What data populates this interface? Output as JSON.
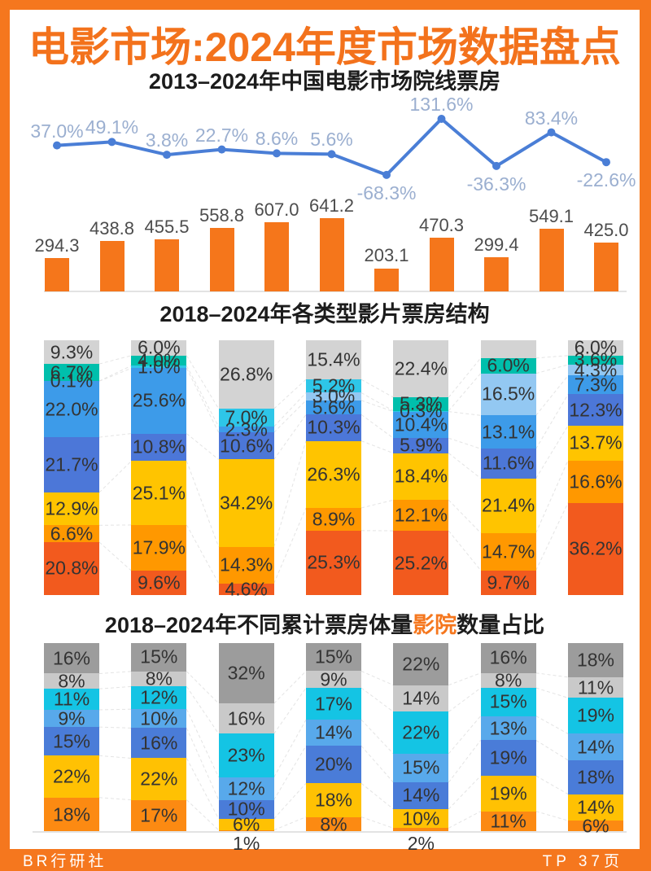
{
  "page": {
    "title": "电影市场:2024年度市场数据盘点",
    "footer_left": "BR行研社",
    "footer_right": "TP 37页",
    "brand_orange": "#F5771E"
  },
  "chart_data": [
    {
      "type": "bar",
      "subtype": "bar-line-combo",
      "title": "2013–2024年中国电影市场院线票房",
      "bar_series": {
        "name": "院线票房(亿元)",
        "values": [
          294.3,
          438.8,
          455.5,
          558.8,
          607.0,
          641.2,
          203.1,
          470.3,
          299.4,
          549.1,
          425.0
        ],
        "labels": [
          "294.3",
          "438.8",
          "455.5",
          "558.8",
          "607.0",
          "641.2",
          "203.1",
          "470.3",
          "299.4",
          "549.1",
          "425.0"
        ],
        "color": "#F5761B",
        "label_color": "#4D4D4D"
      },
      "line_series": {
        "name": "同比增速(%)",
        "values": [
          37.0,
          49.1,
          3.8,
          22.7,
          8.6,
          5.6,
          -68.3,
          131.6,
          -36.3,
          83.4,
          -22.6
        ],
        "labels": [
          "37.0%",
          "49.1%",
          "3.8%",
          "22.7%",
          "8.6%",
          "5.6%",
          "-68.3%",
          "131.6%",
          "-36.3%",
          "83.4%",
          "-22.6%"
        ],
        "color": "#4A7ED6",
        "label_color": "#9BAFD0"
      },
      "ylim_bar": [
        0,
        641.2
      ],
      "grid": false,
      "legend": "none"
    },
    {
      "type": "bar",
      "subtype": "stacked-100",
      "title": "2018–2024年各类型影片票房结构",
      "palette": {
        "gray": "#D3D3D3",
        "teal": "#00BFAC",
        "cyan": "#2EC6E8",
        "paleblue": "#93C8F2",
        "lightblue": "#3D9BE9",
        "medblue": "#4C77D8",
        "yellow": "#FFC400",
        "orange": "#FF9800",
        "deeporange": "#F25A1E"
      },
      "bars": [
        {
          "segments": [
            {
              "label": "9.3%",
              "value": 9.3,
              "color": "gray"
            },
            {
              "label": "6.7%",
              "value": 6.7,
              "color": "teal"
            },
            {
              "label": "0.1%",
              "value": 0.1,
              "color": "cyan"
            },
            {
              "label": "22.0%",
              "value": 22.0,
              "color": "lightblue"
            },
            {
              "label": "21.7%",
              "value": 21.7,
              "color": "medblue"
            },
            {
              "label": "12.9%",
              "value": 12.9,
              "color": "yellow"
            },
            {
              "label": "6.6%",
              "value": 6.6,
              "color": "orange"
            },
            {
              "label": "20.8%",
              "value": 20.8,
              "color": "deeporange"
            }
          ]
        },
        {
          "segments": [
            {
              "label": "6.0%",
              "value": 6.0,
              "color": "gray"
            },
            {
              "label": "4.0%",
              "value": 4.0,
              "color": "teal"
            },
            {
              "label": "1.0%",
              "value": 1.0,
              "color": "cyan"
            },
            {
              "label": "25.6%",
              "value": 25.6,
              "color": "lightblue"
            },
            {
              "label": "10.8%",
              "value": 10.8,
              "color": "medblue"
            },
            {
              "label": "25.1%",
              "value": 25.1,
              "color": "yellow"
            },
            {
              "label": "17.9%",
              "value": 17.9,
              "color": "orange"
            },
            {
              "label": "9.6%",
              "value": 9.6,
              "color": "deeporange"
            }
          ]
        },
        {
          "segments": [
            {
              "label": "26.8%",
              "value": 26.8,
              "color": "gray"
            },
            {
              "label": "7.0%",
              "value": 7.0,
              "color": "cyan"
            },
            {
              "label": "2.3%",
              "value": 2.3,
              "color": "lightblue"
            },
            {
              "label": "10.6%",
              "value": 10.6,
              "color": "medblue"
            },
            {
              "label": "34.2%",
              "value": 34.2,
              "color": "yellow"
            },
            {
              "label": "14.3%",
              "value": 14.3,
              "color": "orange"
            },
            {
              "label": "4.6%",
              "value": 4.6,
              "color": "deeporange"
            }
          ]
        },
        {
          "segments": [
            {
              "label": "15.4%",
              "value": 15.4,
              "color": "gray"
            },
            {
              "label": "5.2%",
              "value": 5.2,
              "color": "cyan"
            },
            {
              "label": "3.0%",
              "value": 3.0,
              "color": "paleblue"
            },
            {
              "label": "5.6%",
              "value": 5.6,
              "color": "lightblue"
            },
            {
              "label": "10.3%",
              "value": 10.3,
              "color": "medblue"
            },
            {
              "label": "26.3%",
              "value": 26.3,
              "color": "yellow"
            },
            {
              "label": "8.9%",
              "value": 8.9,
              "color": "orange"
            },
            {
              "label": "25.3%",
              "value": 25.3,
              "color": "deeporange"
            }
          ]
        },
        {
          "segments": [
            {
              "label": "22.4%",
              "value": 22.4,
              "color": "gray"
            },
            {
              "label": "5.3%",
              "value": 5.3,
              "color": "teal"
            },
            {
              "label": "0.3%",
              "value": 0.3,
              "color": "cyan"
            },
            {
              "label": "10.4%",
              "value": 10.4,
              "color": "lightblue"
            },
            {
              "label": "5.9%",
              "value": 5.9,
              "color": "medblue"
            },
            {
              "label": "18.4%",
              "value": 18.4,
              "color": "yellow"
            },
            {
              "label": "12.1%",
              "value": 12.1,
              "color": "orange"
            },
            {
              "label": "25.2%",
              "value": 25.2,
              "color": "deeporange"
            }
          ]
        },
        {
          "segments": [
            {
              "label": "",
              "value": 7.0,
              "color": "gray"
            },
            {
              "label": "6.0%",
              "value": 6.0,
              "color": "teal"
            },
            {
              "label": "16.5%",
              "value": 16.5,
              "color": "paleblue"
            },
            {
              "label": "13.1%",
              "value": 13.1,
              "color": "lightblue"
            },
            {
              "label": "11.6%",
              "value": 11.6,
              "color": "medblue"
            },
            {
              "label": "21.4%",
              "value": 21.4,
              "color": "yellow"
            },
            {
              "label": "14.7%",
              "value": 14.7,
              "color": "orange"
            },
            {
              "label": "9.7%",
              "value": 9.7,
              "color": "deeporange"
            }
          ]
        },
        {
          "segments": [
            {
              "label": "6.0%",
              "value": 6.0,
              "color": "gray"
            },
            {
              "label": "3.6%",
              "value": 3.6,
              "color": "teal"
            },
            {
              "label": "4.3%",
              "value": 4.3,
              "color": "paleblue"
            },
            {
              "label": "7.3%",
              "value": 7.3,
              "color": "lightblue"
            },
            {
              "label": "12.3%",
              "value": 12.3,
              "color": "medblue"
            },
            {
              "label": "13.7%",
              "value": 13.7,
              "color": "yellow"
            },
            {
              "label": "16.6%",
              "value": 16.6,
              "color": "orange"
            },
            {
              "label": "36.2%",
              "value": 36.2,
              "color": "deeporange"
            }
          ]
        }
      ]
    },
    {
      "type": "bar",
      "subtype": "stacked-100",
      "title_pre": "2018–2024年不同累计票房体量",
      "title_highlight": "影院",
      "title_post": "数量占比",
      "palette": {
        "darkgray": "#9C9C9C",
        "lightgray": "#C9C9C9",
        "cyan": "#14C4E4",
        "lightblue": "#58A9EB",
        "medblue": "#4A7CD8",
        "yellow": "#FFC103",
        "orange": "#FC8A12"
      },
      "bars": [
        {
          "segments": [
            {
              "label": "16%",
              "value": 16,
              "color": "darkgray"
            },
            {
              "label": "8%",
              "value": 8,
              "color": "lightgray"
            },
            {
              "label": "11%",
              "value": 11,
              "color": "cyan"
            },
            {
              "label": "9%",
              "value": 9,
              "color": "lightblue"
            },
            {
              "label": "15%",
              "value": 15,
              "color": "medblue"
            },
            {
              "label": "22%",
              "value": 22,
              "color": "yellow"
            },
            {
              "label": "18%",
              "value": 18,
              "color": "orange"
            }
          ]
        },
        {
          "segments": [
            {
              "label": "15%",
              "value": 15,
              "color": "darkgray"
            },
            {
              "label": "8%",
              "value": 8,
              "color": "lightgray"
            },
            {
              "label": "12%",
              "value": 12,
              "color": "cyan"
            },
            {
              "label": "10%",
              "value": 10,
              "color": "lightblue"
            },
            {
              "label": "16%",
              "value": 16,
              "color": "medblue"
            },
            {
              "label": "22%",
              "value": 22,
              "color": "yellow"
            },
            {
              "label": "17%",
              "value": 17,
              "color": "orange"
            }
          ]
        },
        {
          "segments": [
            {
              "label": "32%",
              "value": 32,
              "color": "darkgray"
            },
            {
              "label": "16%",
              "value": 16,
              "color": "lightgray"
            },
            {
              "label": "23%",
              "value": 23,
              "color": "cyan"
            },
            {
              "label": "12%",
              "value": 12,
              "color": "lightblue"
            },
            {
              "label": "10%",
              "value": 10,
              "color": "medblue"
            },
            {
              "label": "6%",
              "value": 6,
              "color": "yellow"
            },
            {
              "label": "1%",
              "value": 1,
              "color": "orange"
            }
          ]
        },
        {
          "segments": [
            {
              "label": "15%",
              "value": 15,
              "color": "darkgray"
            },
            {
              "label": "9%",
              "value": 9,
              "color": "lightgray"
            },
            {
              "label": "17%",
              "value": 17,
              "color": "cyan"
            },
            {
              "label": "14%",
              "value": 14,
              "color": "lightblue"
            },
            {
              "label": "20%",
              "value": 20,
              "color": "medblue"
            },
            {
              "label": "18%",
              "value": 18,
              "color": "yellow"
            },
            {
              "label": "8%",
              "value": 8,
              "color": "orange"
            }
          ]
        },
        {
          "segments": [
            {
              "label": "22%",
              "value": 22,
              "color": "darkgray"
            },
            {
              "label": "14%",
              "value": 14,
              "color": "lightgray"
            },
            {
              "label": "22%",
              "value": 22,
              "color": "cyan"
            },
            {
              "label": "15%",
              "value": 15,
              "color": "lightblue"
            },
            {
              "label": "14%",
              "value": 14,
              "color": "medblue"
            },
            {
              "label": "10%",
              "value": 10,
              "color": "yellow"
            },
            {
              "label": "2%",
              "value": 2,
              "color": "orange"
            }
          ]
        },
        {
          "segments": [
            {
              "label": "16%",
              "value": 16,
              "color": "darkgray"
            },
            {
              "label": "8%",
              "value": 8,
              "color": "lightgray"
            },
            {
              "label": "15%",
              "value": 15,
              "color": "cyan"
            },
            {
              "label": "13%",
              "value": 13,
              "color": "lightblue"
            },
            {
              "label": "19%",
              "value": 19,
              "color": "medblue"
            },
            {
              "label": "19%",
              "value": 19,
              "color": "yellow"
            },
            {
              "label": "11%",
              "value": 11,
              "color": "orange"
            }
          ]
        },
        {
          "segments": [
            {
              "label": "18%",
              "value": 18,
              "color": "darkgray"
            },
            {
              "label": "11%",
              "value": 11,
              "color": "lightgray"
            },
            {
              "label": "19%",
              "value": 19,
              "color": "cyan"
            },
            {
              "label": "14%",
              "value": 14,
              "color": "lightblue"
            },
            {
              "label": "18%",
              "value": 18,
              "color": "medblue"
            },
            {
              "label": "14%",
              "value": 14,
              "color": "yellow"
            },
            {
              "label": "6%",
              "value": 6,
              "color": "orange"
            }
          ]
        }
      ]
    }
  ]
}
